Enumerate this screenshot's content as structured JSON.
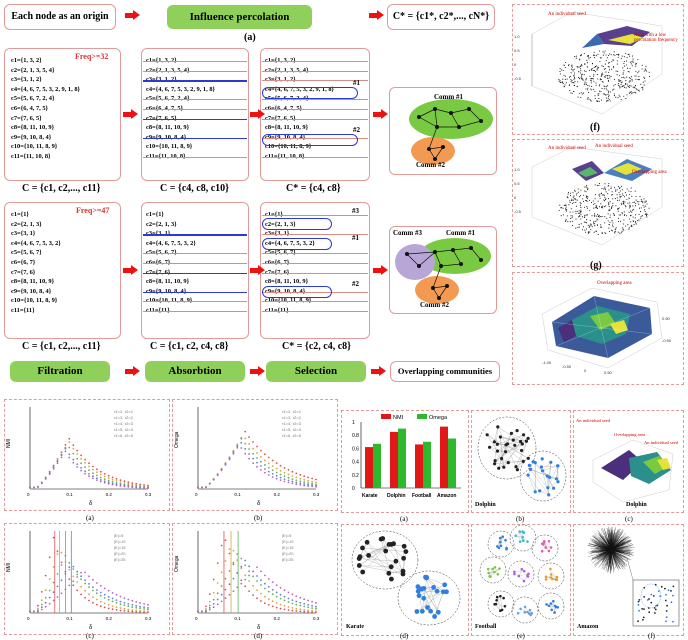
{
  "top": {
    "origin_box": "Each node as an origin",
    "percolation_box": "Influence percolation",
    "result_formula": "C* = {c1*, c2*,..., cN*}",
    "panel_label": "(a)"
  },
  "rows": [
    {
      "freq": "Freq>=32",
      "list1": [
        "c1={1, 3, 2}",
        "c2={2, 1, 3, 5, 4}",
        "c3={3, 1, 2}",
        "c4={4, 6, 7, 5, 3, 2, 9, 1, 8}",
        "c5={5, 6, 7, 2, 4}",
        "c6={6, 4, 7, 5}",
        "c7={7, 6, 5}",
        "c8={8, 11, 10, 9}",
        "c9={9, 10, 8, 4}",
        "c10={10, 11, 8, 9}",
        "c11={11, 10, 8}"
      ],
      "list2": [
        "c1={1, 3, 2}",
        "c2={2, 1, 3, 5, 4}",
        "c3={3, 1, 2}",
        "c4={4, 6, 7, 5, 3, 2, 9, 1, 8}",
        "c5={5, 6, 7, 2, 4}",
        "c6={6, 4, 7, 5}",
        "c7={7, 6, 5}",
        "c8={8, 11, 10, 9}",
        "c9={9, 10, 8, 4}",
        "c10={10, 11, 8, 9}",
        "c11={11, 10, 8}"
      ],
      "list3": [
        "c1={1, 3, 2}",
        "c2={2, 1, 3, 5, 4}",
        "c3={3, 1, 2}",
        "c4={4, 6, 7, 5, 3, 2, 9, 1, 8}",
        "c5={5, 6, 7, 2, 4}",
        "c6={6, 4, 7, 5}",
        "c7={7, 6, 5}",
        "c8={8, 11, 10, 9}",
        "c9={9, 10, 8, 4}",
        "c10={10, 11, 8, 9}",
        "c11={11, 10, 8}"
      ],
      "marks": [
        "#1",
        "#2"
      ],
      "formula1": "C = {c1, c2,..., c11}",
      "formula2": "C = {c4, c8, c10}",
      "formula3": "C* = {c4, c8}",
      "comm1": "Comm #1",
      "comm2": "Comm #2"
    },
    {
      "freq": "Freq>=47",
      "list1": [
        "c1={1}",
        "c2={2, 1, 3}",
        "c3={3, 1}",
        "c4={4, 6, 7, 5, 3, 2}",
        "c5={5, 6, 7}",
        "c6={6, 7}",
        "c7={7, 6}",
        "c8={8, 11, 10, 9}",
        "c9={9, 10, 8, 4}",
        "c10={10, 11, 8, 9}",
        "c11={11}"
      ],
      "list2": [
        "c1={1}",
        "c2={2, 1, 3}",
        "c3={3, 1}",
        "c4={4, 6, 7, 5, 3, 2}",
        "c5={5, 6, 7}",
        "c6={6, 7}",
        "c7={7, 6}",
        "c8={8, 11, 10, 9}",
        "c9={9, 10, 8, 4}",
        "c10={10, 11, 8, 9}",
        "c11={11}"
      ],
      "list3": [
        "c1={1}",
        "c2={2, 1, 3}",
        "c3={3, 1}",
        "c4={4, 6, 7, 5, 3, 2}",
        "c5={5, 6, 7}",
        "c6={6, 7}",
        "c7={7, 6}",
        "c8={8, 11, 10, 9}",
        "c9={9, 10, 8, 4}",
        "c10={10, 11, 8, 9}",
        "c11={11}"
      ],
      "marks": [
        "#3",
        "#1",
        "#2"
      ],
      "formula1": "C = {c1, c2,..., c11}",
      "formula2": "C = {c1, c2, c4, c8}",
      "formula3": "C* = {c2, c4, c8}",
      "comm1": "Comm #1",
      "comm2": "Comm #2",
      "comm3": "Comm #3"
    }
  ],
  "stages": {
    "filtration": "Filtration",
    "absorption": "Absorbtion",
    "selection": "Selection",
    "overlapping": "Overlapping communities"
  },
  "right3d": {
    "f_label": "(f)",
    "g_label": "(g)",
    "f_ann1": "An individual seed",
    "f_ann2": "Area with a low percolation frequency",
    "g_ann1": "An individual seed",
    "g_ann2": "An individual seed",
    "g_ann3": "Overlapping area",
    "h_ann": "Overlapping area"
  },
  "bl_panels": {
    "a": "(a)",
    "b": "(b)",
    "c": "(c)",
    "d": "(d)",
    "y_nmi": "NMI",
    "y_omega": "Omega",
    "x_delta": "δ",
    "legend_top": [
      "τ1=2, τ2=1",
      "τ1=3, τ2=2",
      "τ1=4, τ2=3",
      "τ1=5, τ2=4",
      "τ1=6, τ2=5"
    ],
    "legend_bottom": [
      "|E|=5",
      "|E|=10",
      "|E|=15",
      "|E|=20",
      "|E|=25"
    ],
    "xticks": [
      "0",
      "0.1",
      "0.2",
      "0.3"
    ]
  },
  "bar_chart": {
    "label": "(a)",
    "chart_data": {
      "type": "bar",
      "categories": [
        "Karate",
        "Dolphin",
        "Football",
        "Amazon"
      ],
      "series": [
        {
          "name": "NMI",
          "values": [
            0.62,
            0.85,
            0.66,
            0.93
          ],
          "color": "#e01818"
        },
        {
          "name": "Omega",
          "values": [
            0.67,
            0.9,
            0.7,
            0.75
          ],
          "color": "#2db82d"
        }
      ],
      "ylim": [
        0,
        1
      ],
      "yticks": [
        "0",
        "0.2",
        "0.4",
        "0.6",
        "0.8",
        "1"
      ]
    }
  },
  "br_panels": {
    "b": "(b)",
    "c": "(c)",
    "d": "(d)",
    "e": "(e)",
    "f": "(f)",
    "dolphin": "Dolphin",
    "dolphin2": "Dolphin",
    "karate": "Karate",
    "football": "Football",
    "amazon": "Amazon",
    "c_ann1": "An individual seed",
    "c_ann2": "Overlapping area",
    "c_ann3": "An individual seed"
  }
}
